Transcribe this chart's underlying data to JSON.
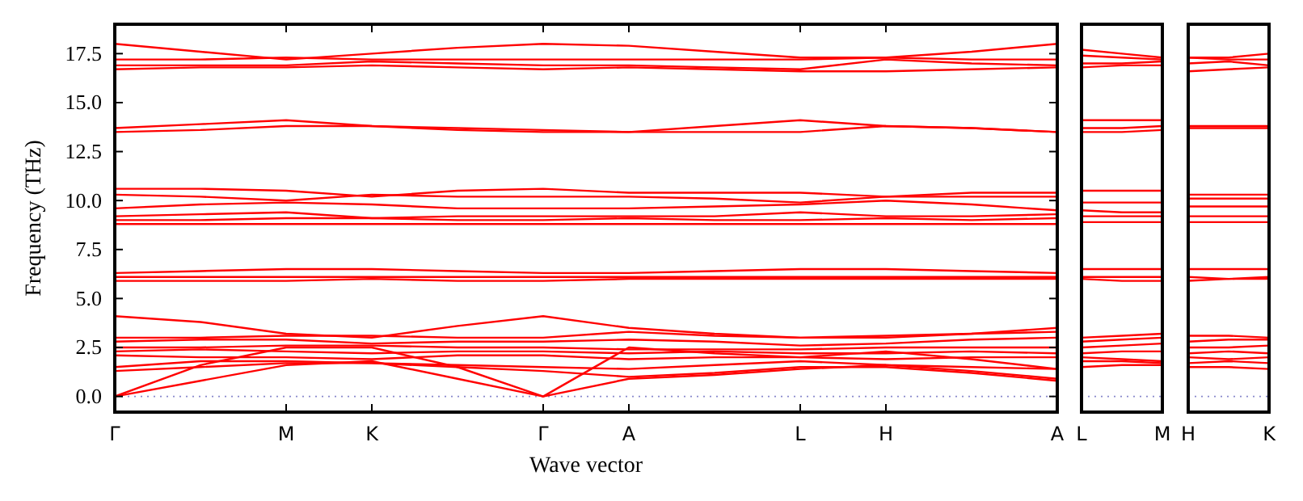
{
  "chart_data": [
    {
      "type": "line",
      "xlabel": "Wave vector",
      "ylabel": "Frequency (THz)",
      "ylim": [
        -0.8,
        19
      ],
      "categories": [
        "Γ",
        null,
        "M",
        "K",
        null,
        "Γ",
        "A",
        null,
        "L",
        "H",
        null,
        "A"
      ],
      "yticks": [
        {
          "value": 0,
          "label": "0.0"
        },
        {
          "value": 2.5,
          "label": "2.5"
        },
        {
          "value": 5,
          "label": "5.0"
        },
        {
          "value": 7.5,
          "label": "7.5"
        },
        {
          "value": 10,
          "label": "10.0"
        },
        {
          "value": 12.5,
          "label": "12.5"
        },
        {
          "value": 15,
          "label": "15.0"
        },
        {
          "value": 17.5,
          "label": "17.5"
        }
      ],
      "line_style": "solid",
      "ref_lines": [
        {
          "axis": "y",
          "value": 0,
          "color": "#8888cc",
          "line_style": "dotted"
        }
      ],
      "series": [
        {
          "color": "#ff0000",
          "values": [
            18.0,
            17.6,
            17.2,
            17.5,
            17.8,
            18.0,
            17.9,
            17.6,
            17.3,
            17.3,
            17.6,
            18.0
          ]
        },
        {
          "color": "#ff0000",
          "values": [
            17.2,
            17.2,
            17.3,
            17.2,
            17.2,
            17.2,
            17.2,
            17.2,
            17.2,
            17.3,
            17.2,
            17.2
          ]
        },
        {
          "color": "#ff0000",
          "values": [
            16.9,
            16.9,
            16.9,
            17.1,
            17.0,
            16.9,
            16.9,
            16.8,
            16.7,
            17.2,
            17.0,
            16.9
          ]
        },
        {
          "color": "#ff0000",
          "values": [
            16.7,
            16.8,
            16.8,
            16.9,
            16.8,
            16.7,
            16.8,
            16.7,
            16.6,
            16.6,
            16.7,
            16.8
          ]
        },
        {
          "color": "#ff0000",
          "values": [
            13.7,
            13.9,
            14.1,
            13.8,
            13.7,
            13.6,
            13.5,
            13.8,
            14.1,
            13.8,
            13.7,
            13.5
          ]
        },
        {
          "color": "#ff0000",
          "values": [
            13.5,
            13.6,
            13.8,
            13.8,
            13.6,
            13.5,
            13.5,
            13.5,
            13.5,
            13.8,
            13.7,
            13.5
          ]
        },
        {
          "color": "#ff0000",
          "values": [
            10.6,
            10.6,
            10.5,
            10.2,
            10.5,
            10.6,
            10.4,
            10.4,
            10.4,
            10.2,
            10.4,
            10.4
          ]
        },
        {
          "color": "#ff0000",
          "values": [
            10.3,
            10.2,
            10.0,
            10.3,
            10.2,
            10.2,
            10.2,
            10.1,
            9.9,
            10.2,
            10.2,
            10.2
          ]
        },
        {
          "color": "#ff0000",
          "values": [
            9.6,
            9.8,
            9.9,
            9.8,
            9.6,
            9.6,
            9.6,
            9.7,
            9.8,
            10.0,
            9.8,
            9.5
          ]
        },
        {
          "color": "#ff0000",
          "values": [
            9.2,
            9.3,
            9.4,
            9.1,
            9.2,
            9.2,
            9.2,
            9.2,
            9.4,
            9.2,
            9.2,
            9.3
          ]
        },
        {
          "color": "#ff0000",
          "values": [
            9.0,
            9.0,
            9.1,
            9.1,
            9.0,
            9.0,
            9.1,
            9.0,
            9.0,
            9.1,
            9.0,
            9.1
          ]
        },
        {
          "color": "#ff0000",
          "values": [
            8.8,
            8.8,
            8.8,
            8.8,
            8.8,
            8.8,
            8.8,
            8.8,
            8.8,
            8.8,
            8.8,
            8.8
          ]
        },
        {
          "color": "#ff0000",
          "values": [
            6.3,
            6.4,
            6.5,
            6.5,
            6.4,
            6.3,
            6.3,
            6.4,
            6.5,
            6.5,
            6.4,
            6.3
          ]
        },
        {
          "color": "#ff0000",
          "values": [
            6.1,
            6.1,
            6.1,
            6.1,
            6.1,
            6.1,
            6.1,
            6.1,
            6.1,
            6.1,
            6.1,
            6.1
          ]
        },
        {
          "color": "#ff0000",
          "values": [
            5.9,
            5.9,
            5.9,
            6.0,
            5.9,
            5.9,
            6.0,
            6.0,
            6.0,
            6.0,
            6.0,
            6.0
          ]
        },
        {
          "color": "#ff0000",
          "values": [
            4.1,
            3.8,
            3.2,
            3.0,
            3.6,
            4.1,
            3.5,
            3.2,
            3.0,
            3.0,
            3.2,
            3.5
          ]
        },
        {
          "color": "#ff0000",
          "values": [
            3.0,
            3.0,
            3.1,
            3.1,
            3.0,
            3.0,
            3.3,
            3.1,
            3.0,
            3.1,
            3.2,
            3.3
          ]
        },
        {
          "color": "#ff0000",
          "values": [
            2.8,
            2.9,
            2.9,
            2.7,
            2.8,
            2.8,
            2.9,
            2.8,
            2.6,
            2.7,
            2.9,
            3.0
          ]
        },
        {
          "color": "#ff0000",
          "values": [
            2.5,
            2.5,
            2.6,
            2.6,
            2.5,
            2.5,
            2.4,
            2.4,
            2.4,
            2.5,
            2.5,
            2.5
          ]
        },
        {
          "color": "#ff0000",
          "values": [
            2.3,
            2.4,
            2.3,
            2.2,
            2.3,
            2.3,
            2.2,
            2.3,
            2.2,
            2.2,
            2.3,
            2.2
          ]
        },
        {
          "color": "#ff0000",
          "values": [
            2.1,
            2.0,
            2.0,
            1.9,
            2.1,
            2.1,
            1.9,
            2.0,
            2.0,
            1.9,
            2.0,
            2.0
          ]
        },
        {
          "color": "#ff0000",
          "values": [
            1.5,
            1.8,
            1.8,
            1.7,
            1.6,
            1.5,
            1.4,
            1.6,
            1.8,
            1.6,
            1.5,
            1.4
          ]
        },
        {
          "color": "#ff0000",
          "values": [
            1.3,
            1.5,
            1.7,
            1.7,
            1.5,
            1.3,
            1.0,
            1.2,
            1.5,
            1.5,
            1.2,
            0.8
          ]
        },
        {
          "color": "#ff0000",
          "values": [
            0,
            1.6,
            2.5,
            2.5,
            1.5,
            0,
            2.5,
            2.2,
            2.0,
            2.3,
            1.9,
            1.4
          ]
        },
        {
          "color": "#ff0000",
          "values": [
            0,
            0.8,
            1.6,
            1.8,
            0.9,
            0,
            0.9,
            1.1,
            1.4,
            1.6,
            1.3,
            0.9
          ]
        }
      ]
    },
    {
      "type": "line",
      "ylim": [
        -0.8,
        19
      ],
      "tick_labels": "x",
      "line_style": "solid",
      "categories": [
        "L",
        null,
        "M"
      ],
      "ref_lines": [
        {
          "axis": "y",
          "value": 0,
          "color": "#8888cc",
          "line_style": "dotted"
        }
      ],
      "series": [
        {
          "color": "#ff0000",
          "values": [
            17.7,
            17.5,
            17.3
          ]
        },
        {
          "color": "#ff0000",
          "values": [
            17.4,
            17.3,
            17.2
          ]
        },
        {
          "color": "#ff0000",
          "values": [
            17.0,
            17.0,
            17.1
          ]
        },
        {
          "color": "#ff0000",
          "values": [
            16.8,
            16.9,
            16.9
          ]
        },
        {
          "color": "#ff0000",
          "values": [
            14.1,
            14.1,
            14.1
          ]
        },
        {
          "color": "#ff0000",
          "values": [
            13.7,
            13.7,
            13.8
          ]
        },
        {
          "color": "#ff0000",
          "values": [
            13.5,
            13.5,
            13.6
          ]
        },
        {
          "color": "#ff0000",
          "values": [
            10.5,
            10.5,
            10.5
          ]
        },
        {
          "color": "#ff0000",
          "values": [
            9.9,
            9.9,
            9.9
          ]
        },
        {
          "color": "#ff0000",
          "values": [
            9.5,
            9.4,
            9.4
          ]
        },
        {
          "color": "#ff0000",
          "values": [
            9.2,
            9.2,
            9.2
          ]
        },
        {
          "color": "#ff0000",
          "values": [
            8.9,
            8.9,
            8.9
          ]
        },
        {
          "color": "#ff0000",
          "values": [
            6.5,
            6.5,
            6.5
          ]
        },
        {
          "color": "#ff0000",
          "values": [
            6.1,
            6.1,
            6.1
          ]
        },
        {
          "color": "#ff0000",
          "values": [
            6.0,
            5.9,
            5.9
          ]
        },
        {
          "color": "#ff0000",
          "values": [
            3.0,
            3.1,
            3.2
          ]
        },
        {
          "color": "#ff0000",
          "values": [
            2.8,
            2.9,
            3.0
          ]
        },
        {
          "color": "#ff0000",
          "values": [
            2.5,
            2.6,
            2.7
          ]
        },
        {
          "color": "#ff0000",
          "values": [
            2.2,
            2.3,
            2.3
          ]
        },
        {
          "color": "#ff0000",
          "values": [
            2.0,
            1.9,
            1.8
          ]
        },
        {
          "color": "#ff0000",
          "values": [
            1.8,
            1.8,
            1.7
          ]
        },
        {
          "color": "#ff0000",
          "values": [
            1.5,
            1.6,
            1.6
          ]
        }
      ]
    },
    {
      "type": "line",
      "ylim": [
        -0.8,
        19
      ],
      "tick_labels": "x",
      "line_style": "solid",
      "categories": [
        "H",
        null,
        "K"
      ],
      "ref_lines": [
        {
          "axis": "y",
          "value": 0,
          "color": "#8888cc",
          "line_style": "dotted"
        }
      ],
      "series": [
        {
          "color": "#ff0000",
          "values": [
            17.3,
            17.3,
            17.5
          ]
        },
        {
          "color": "#ff0000",
          "values": [
            17.3,
            17.2,
            17.2
          ]
        },
        {
          "color": "#ff0000",
          "values": [
            17.0,
            17.1,
            16.9
          ]
        },
        {
          "color": "#ff0000",
          "values": [
            16.6,
            16.7,
            16.8
          ]
        },
        {
          "color": "#ff0000",
          "values": [
            13.8,
            13.8,
            13.8
          ]
        },
        {
          "color": "#ff0000",
          "values": [
            13.7,
            13.7,
            13.7
          ]
        },
        {
          "color": "#ff0000",
          "values": [
            10.3,
            10.3,
            10.3
          ]
        },
        {
          "color": "#ff0000",
          "values": [
            10.1,
            10.1,
            10.1
          ]
        },
        {
          "color": "#ff0000",
          "values": [
            9.7,
            9.7,
            9.7
          ]
        },
        {
          "color": "#ff0000",
          "values": [
            9.2,
            9.2,
            9.2
          ]
        },
        {
          "color": "#ff0000",
          "values": [
            8.9,
            8.9,
            8.9
          ]
        },
        {
          "color": "#ff0000",
          "values": [
            6.5,
            6.5,
            6.5
          ]
        },
        {
          "color": "#ff0000",
          "values": [
            6.1,
            6.0,
            6.0
          ]
        },
        {
          "color": "#ff0000",
          "values": [
            5.9,
            6.0,
            6.1
          ]
        },
        {
          "color": "#ff0000",
          "values": [
            3.1,
            3.1,
            3.0
          ]
        },
        {
          "color": "#ff0000",
          "values": [
            2.8,
            2.9,
            2.9
          ]
        },
        {
          "color": "#ff0000",
          "values": [
            2.5,
            2.5,
            2.6
          ]
        },
        {
          "color": "#ff0000",
          "values": [
            2.2,
            2.3,
            2.2
          ]
        },
        {
          "color": "#ff0000",
          "values": [
            2.0,
            1.9,
            2.0
          ]
        },
        {
          "color": "#ff0000",
          "values": [
            1.7,
            1.8,
            1.7
          ]
        },
        {
          "color": "#ff0000",
          "values": [
            1.5,
            1.5,
            1.4
          ]
        }
      ]
    }
  ]
}
